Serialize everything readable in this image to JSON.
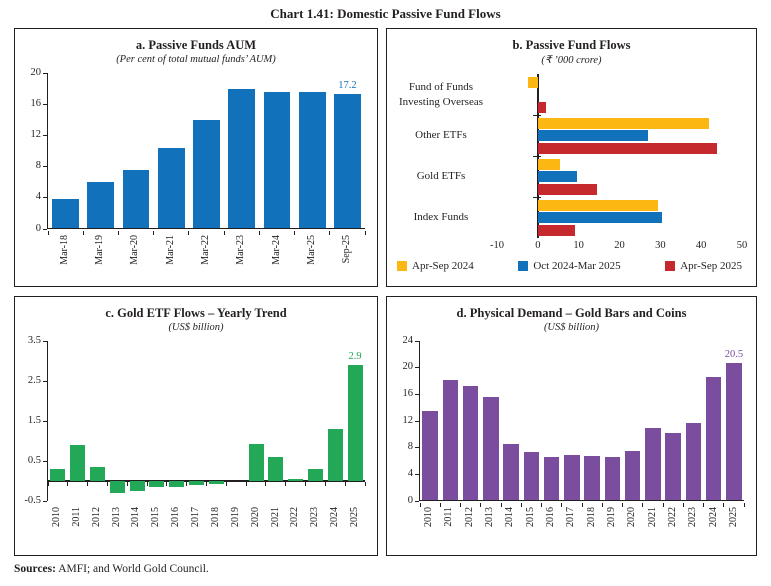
{
  "page": {
    "title": "Chart 1.41: Domestic Passive Fund Flows",
    "footer": {
      "label": "Sources:",
      "text": " AMFI; and World Gold Council."
    }
  },
  "colors": {
    "blue": "#1171BA",
    "yellow": "#FDB713",
    "red": "#C6292D",
    "green": "#22A856",
    "purple": "#7B4D9E",
    "axis": "#231F20"
  },
  "chart_data": [
    {
      "id": "a",
      "type": "bar",
      "title": "a. Passive Funds AUM",
      "subtitle": "(Per cent of total mutual funds’ AUM)",
      "categories": [
        "Mar-18",
        "Mar-19",
        "Mar-20",
        "Mar-21",
        "Mar-22",
        "Mar-23",
        "Mar-24",
        "Mar-25",
        "Sep-25"
      ],
      "values": [
        3.7,
        5.9,
        7.4,
        10.3,
        13.9,
        17.8,
        17.5,
        17.4,
        17.2
      ],
      "ylim": [
        0,
        20
      ],
      "yticks": [
        0,
        4,
        8,
        12,
        16,
        20
      ],
      "last_label": "17.2",
      "color": "blue",
      "grid": false,
      "xlabel": "",
      "ylabel": ""
    },
    {
      "id": "b",
      "type": "bar-horizontal",
      "title": "b. Passive Fund Flows",
      "subtitle": "(₹ ’000 crore)",
      "categories": [
        "Fund of Funds Investing Overseas",
        "Other ETFs",
        "Gold ETFs",
        "Index Funds"
      ],
      "series": [
        {
          "name": "Apr-Sep 2024",
          "color": "yellow",
          "values": [
            -2.5,
            42,
            5.5,
            29.5
          ]
        },
        {
          "name": "Oct 2024-Mar 2025",
          "color": "blue",
          "values": [
            0,
            27,
            9.5,
            30.5
          ]
        },
        {
          "name": "Apr-Sep 2025",
          "color": "red",
          "values": [
            2,
            44,
            14.5,
            9
          ]
        }
      ],
      "xlim": [
        -10,
        50
      ],
      "xticks": [
        -10,
        0,
        10,
        20,
        30,
        40,
        50
      ],
      "legend_position": "bottom",
      "grid": false,
      "xlabel": "",
      "ylabel": ""
    },
    {
      "id": "c",
      "type": "bar",
      "title": "c. Gold ETF Flows – Yearly Trend",
      "subtitle": "(US$ billion)",
      "categories": [
        "2010",
        "2011",
        "2012",
        "2013",
        "2014",
        "2015",
        "2016",
        "2017",
        "2018",
        "2019",
        "2020",
        "2021",
        "2022",
        "2023",
        "2024",
        "2025"
      ],
      "values": [
        0.3,
        0.9,
        0.35,
        -0.3,
        -0.25,
        -0.15,
        -0.15,
        -0.1,
        -0.08,
        0,
        0.92,
        0.6,
        0.05,
        0.3,
        1.3,
        2.9
      ],
      "ylim": [
        -0.5,
        3.5
      ],
      "yticks": [
        -0.5,
        0.5,
        1.5,
        2.5,
        3.5
      ],
      "last_label": "2.9",
      "color": "green",
      "grid": false,
      "xlabel": "",
      "ylabel": ""
    },
    {
      "id": "d",
      "type": "bar",
      "title": "d. Physical Demand – Gold Bars and Coins",
      "subtitle": "(US$ billion)",
      "categories": [
        "2010",
        "2011",
        "2012",
        "2013",
        "2014",
        "2015",
        "2016",
        "2017",
        "2018",
        "2019",
        "2020",
        "2021",
        "2022",
        "2023",
        "2024",
        "2025"
      ],
      "values": [
        13.4,
        18.0,
        17.1,
        15.5,
        8.4,
        7.2,
        6.5,
        6.8,
        6.6,
        6.5,
        7.4,
        10.8,
        10.1,
        11.6,
        18.4,
        20.5
      ],
      "ylim": [
        0,
        24
      ],
      "yticks": [
        0,
        4,
        8,
        12,
        16,
        20,
        24
      ],
      "last_label": "20.5",
      "color": "purple",
      "grid": false,
      "xlabel": "",
      "ylabel": ""
    }
  ]
}
